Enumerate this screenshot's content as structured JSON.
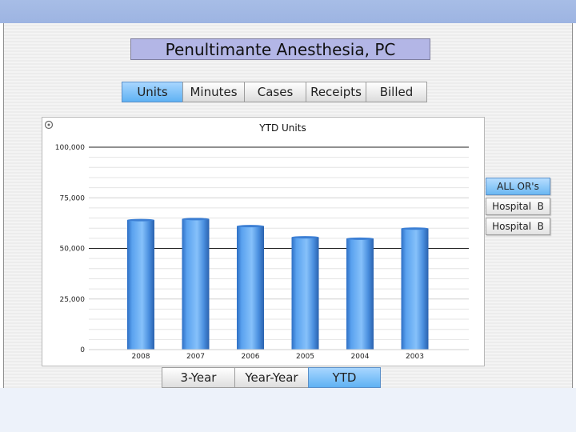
{
  "title": "Penultimante Anesthesia, PC",
  "metric_tabs": [
    {
      "label": "Units",
      "active": true
    },
    {
      "label": "Minutes",
      "active": false
    },
    {
      "label": "Cases",
      "active": false
    },
    {
      "label": "Receipts",
      "active": false
    },
    {
      "label": "Billed",
      "active": false
    }
  ],
  "location_buttons": [
    {
      "label": "ALL OR's",
      "active": true
    },
    {
      "label": "Hospital  B",
      "active": false
    },
    {
      "label": "Hospital  B",
      "active": false
    }
  ],
  "period_tabs": [
    {
      "label": "3-Year",
      "active": false
    },
    {
      "label": "Year-Year",
      "active": false
    },
    {
      "label": "YTD",
      "active": true
    }
  ],
  "chart_settings_icon": "gear-icon",
  "colors": {
    "accent": "#5fb2f3",
    "bar": "#4a8fdf",
    "title_bg": "#b3b6e6",
    "header_band": "#9db4e2"
  },
  "chart_data": {
    "type": "bar",
    "title": "YTD Units",
    "xlabel": "",
    "ylabel": "",
    "categories": [
      "2008",
      "2007",
      "2006",
      "2005",
      "2004",
      "2003"
    ],
    "values": [
      64000,
      64500,
      61000,
      55500,
      54800,
      59800
    ],
    "ylim": [
      0,
      100000
    ],
    "yticks": [
      0,
      25000,
      50000,
      75000,
      100000
    ],
    "ytick_labels": [
      "0",
      "25,000",
      "50,000",
      "75,000",
      "100,000"
    ],
    "grid": true
  }
}
